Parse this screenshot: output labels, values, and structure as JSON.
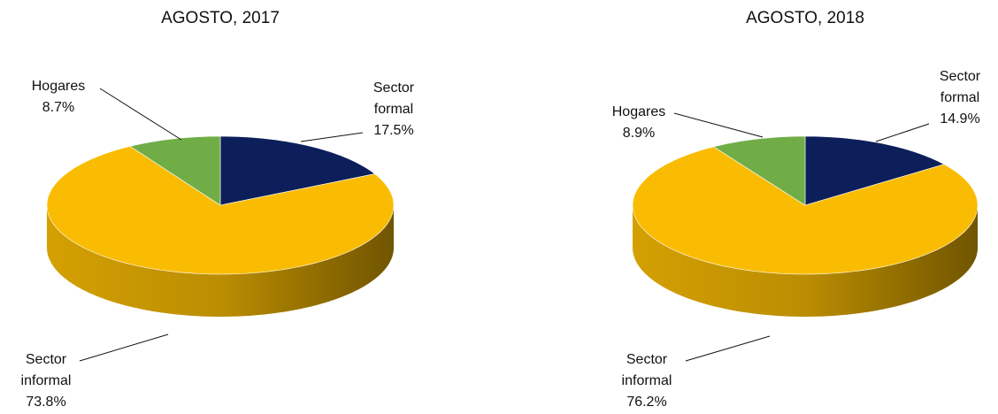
{
  "chart_data": [
    {
      "type": "pie3d",
      "title": "AGOSTO, 2017",
      "categories": [
        "Sector formal",
        "Sector informal",
        "Hogares"
      ],
      "values": [
        17.5,
        73.8,
        8.7
      ],
      "value_labels": [
        "17.5%",
        "73.8%",
        "8.7%"
      ],
      "colors": [
        "#0c1f5a",
        "#f9bc02",
        "#70ad47"
      ]
    },
    {
      "type": "pie3d",
      "title": "AGOSTO, 2018",
      "categories": [
        "Sector formal",
        "Sector informal",
        "Hogares"
      ],
      "values": [
        14.9,
        76.2,
        8.9
      ],
      "value_labels": [
        "14.9%",
        "76.2%",
        "8.9%"
      ],
      "colors": [
        "#0c1f5a",
        "#f9bc02",
        "#70ad47"
      ]
    }
  ]
}
